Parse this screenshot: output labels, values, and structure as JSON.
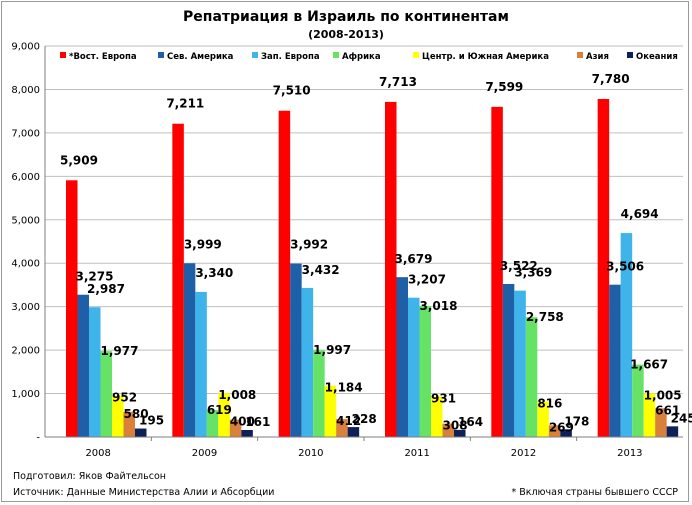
{
  "chart_data": {
    "type": "bar",
    "title": "Репатриация в Израиль по континентам",
    "subtitle": "(2008-2013)",
    "xlabel": "",
    "ylabel": "",
    "ylim": [
      0,
      9000
    ],
    "yticks": [
      "-",
      "1,000",
      "2,000",
      "3,000",
      "4,000",
      "5,000",
      "6,000",
      "7,000",
      "8,000",
      "9,000"
    ],
    "grid": true,
    "legend_position": "top",
    "categories": [
      "2008",
      "2009",
      "2010",
      "2011",
      "2012",
      "2013"
    ],
    "series": [
      {
        "name": "*Вост. Европа",
        "color": "#ff0000",
        "values": [
          5909,
          7211,
          7510,
          7713,
          7599,
          7780
        ],
        "labels": [
          "5,909",
          "7,211",
          "7,510",
          "7,713",
          "7,599",
          "7,780"
        ]
      },
      {
        "name": "Сев. Америка",
        "color": "#1f5fa8",
        "values": [
          3275,
          3999,
          3992,
          3679,
          3522,
          3506
        ],
        "labels": [
          "3,275",
          "3,999",
          "3,992",
          "3,679",
          "3,522",
          "3,506"
        ]
      },
      {
        "name": "Зап. Европа",
        "color": "#3fb4ea",
        "values": [
          2987,
          3340,
          3432,
          3207,
          3369,
          4694
        ],
        "labels": [
          "2,987",
          "3,340",
          "3,432",
          "3,207",
          "3,369",
          "4,694"
        ]
      },
      {
        "name": "Африка",
        "color": "#66e366",
        "values": [
          1977,
          619,
          1997,
          3018,
          2758,
          1667
        ],
        "labels": [
          "1,977",
          "619",
          "1,997",
          "3,018",
          "2,758",
          "1,667"
        ]
      },
      {
        "name": "Центр. и Южная Америка",
        "color": "#ffff00",
        "values": [
          952,
          1008,
          1184,
          931,
          816,
          1005
        ],
        "labels": [
          "952",
          "1,008",
          "1,184",
          "931",
          "816",
          "1,005"
        ]
      },
      {
        "name": "Азия",
        "color": "#d9813b",
        "values": [
          580,
          400,
          412,
          308,
          269,
          661
        ],
        "labels": [
          "580",
          "400",
          "412",
          "308",
          "269",
          "661"
        ]
      },
      {
        "name": "Океания",
        "color": "#0d2057",
        "values": [
          195,
          161,
          228,
          164,
          178,
          245
        ],
        "labels": [
          "195",
          "161",
          "228",
          "164",
          "178",
          "245"
        ]
      }
    ]
  },
  "footer": {
    "prepared_by": "Подготовил: Яков Файтельсон",
    "source": "Источник: Данные Министерства Алии и Абсорбции",
    "note": "* Включая страны бывшего СССР"
  }
}
